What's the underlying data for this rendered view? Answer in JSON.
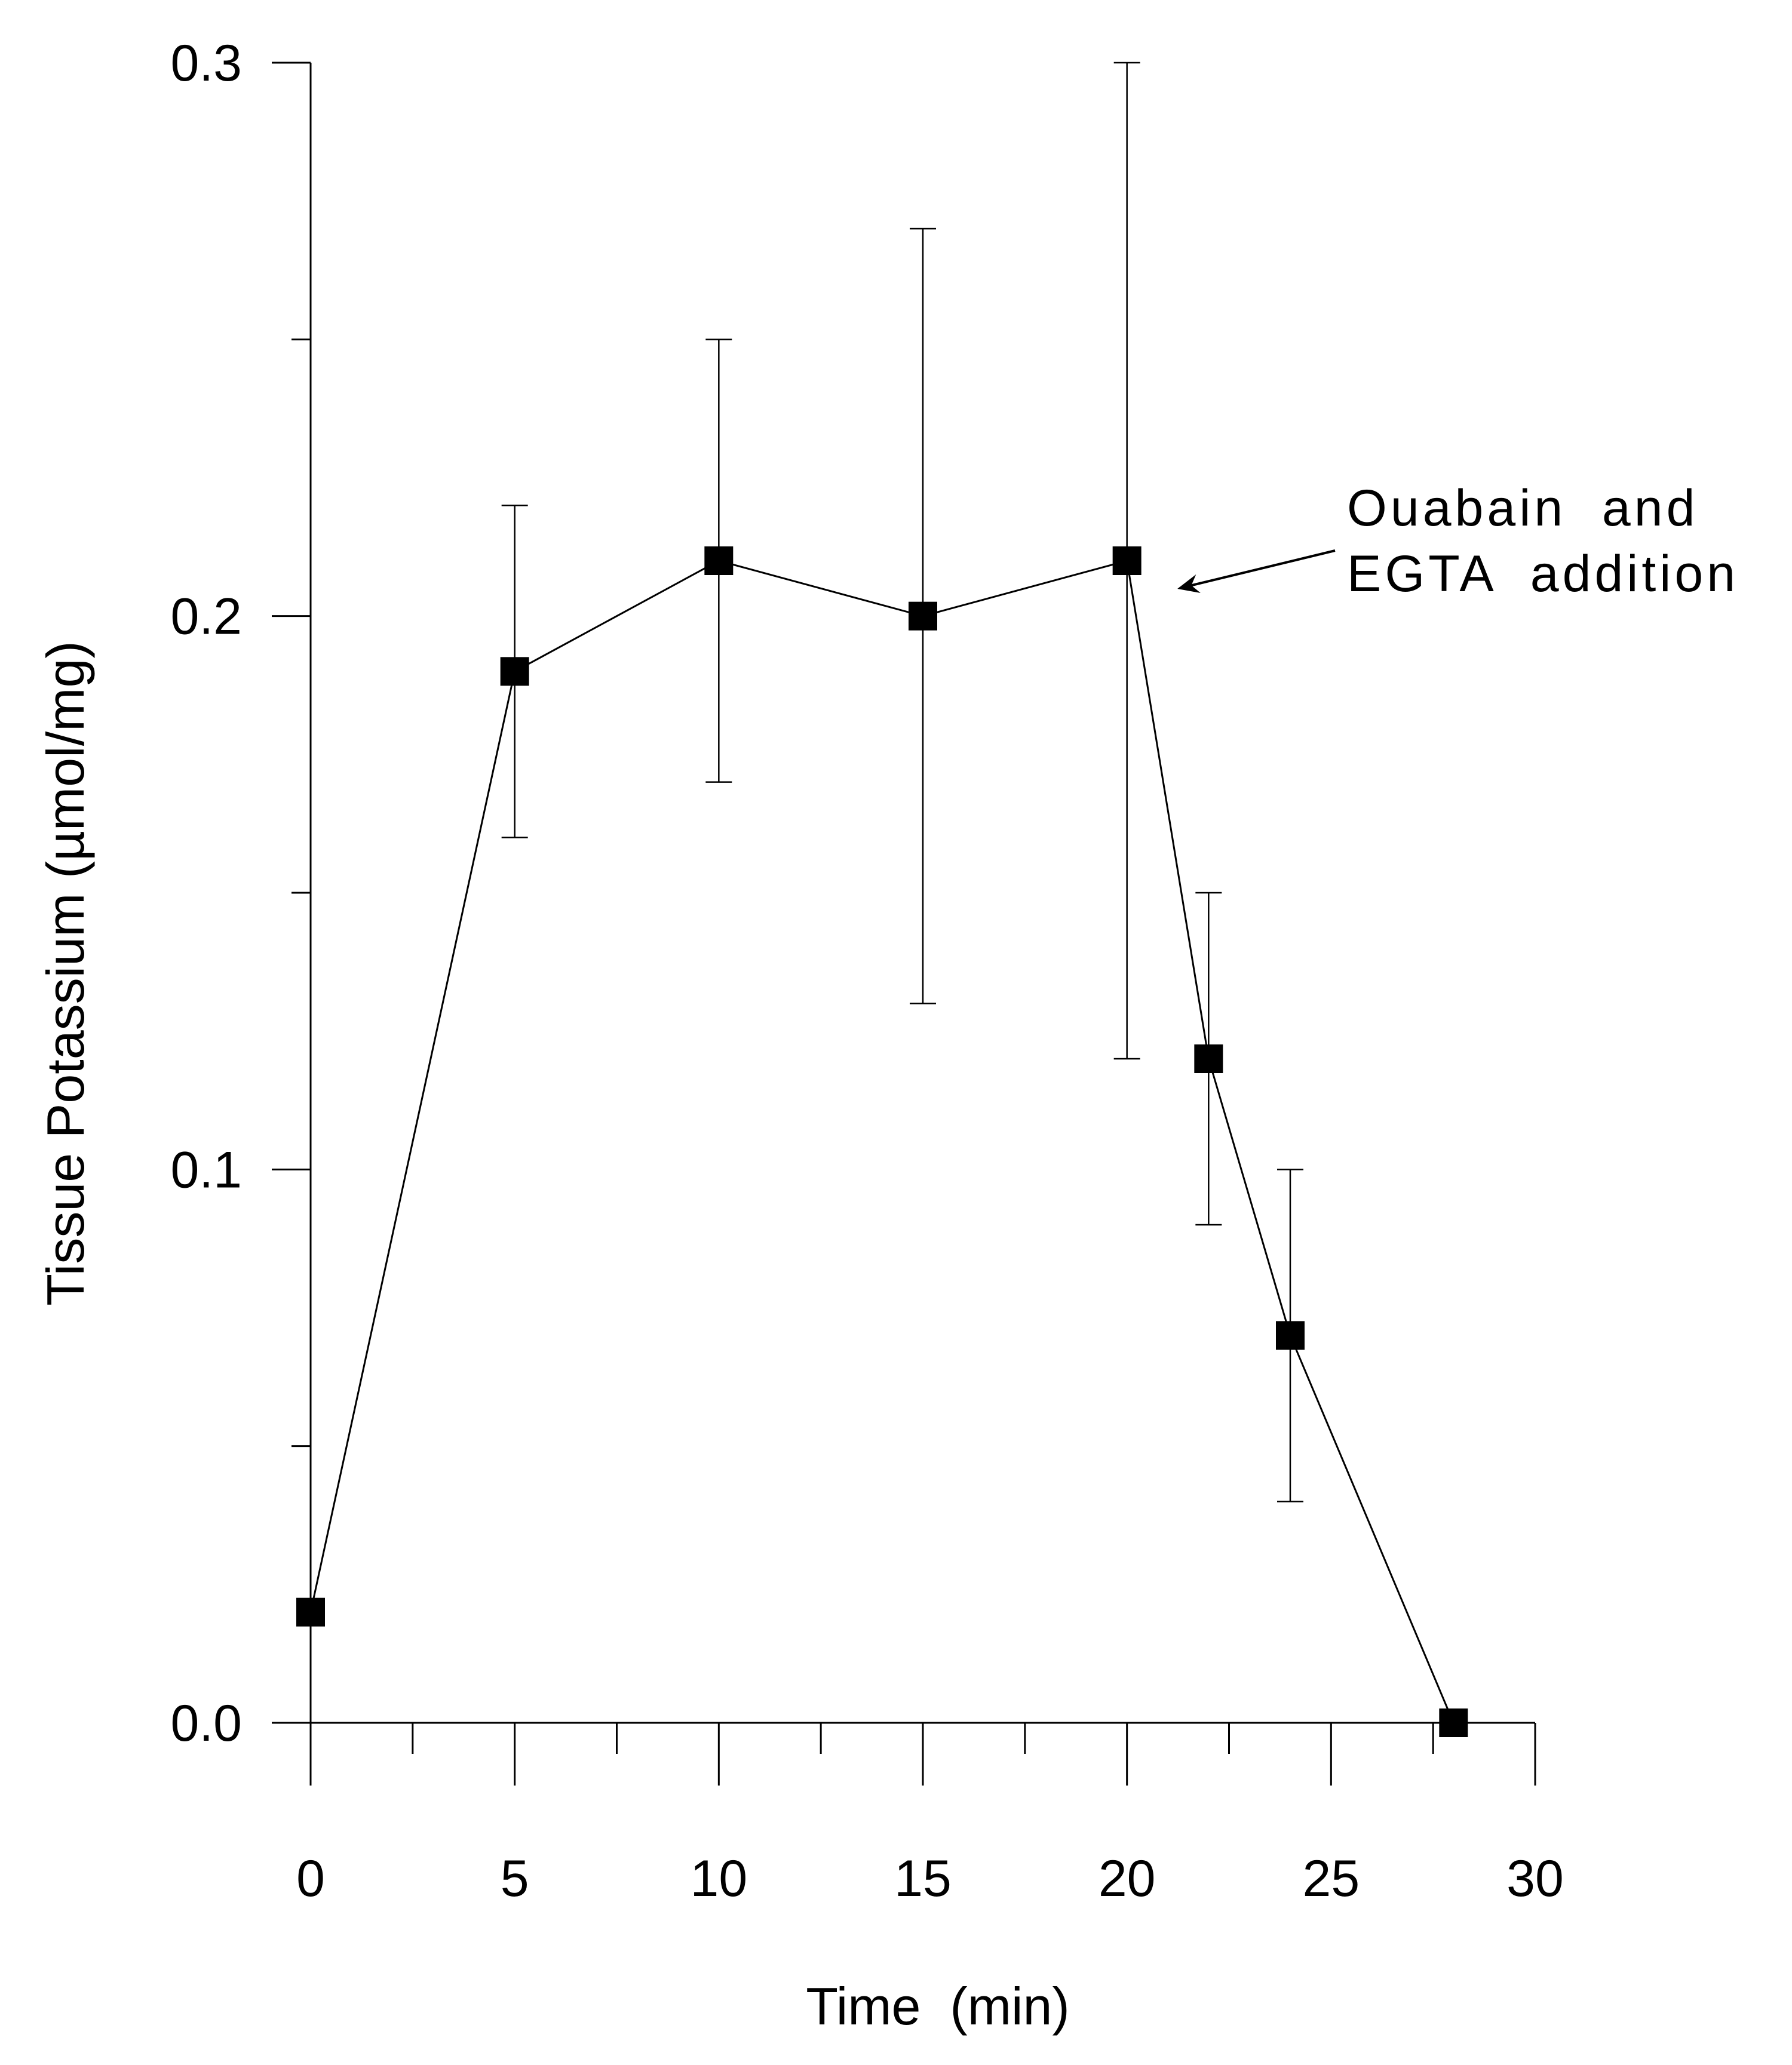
{
  "chart_data": {
    "type": "line",
    "title": "",
    "xlabel": "Time  (min)",
    "ylabel": "Tissue Potassium (µmol/mg)",
    "xlim": [
      0,
      30
    ],
    "ylim": [
      0,
      0.3
    ],
    "x_ticks": [
      "0",
      "5",
      "10",
      "15",
      "20",
      "25",
      "30"
    ],
    "y_ticks": [
      "0.0",
      "0.1",
      "0.2",
      "0.3"
    ],
    "grid": false,
    "series": [
      {
        "name": "Tissue Potassium",
        "marker": "square",
        "x": [
          0,
          5,
          10,
          15,
          20,
          22,
          24,
          28
        ],
        "y": [
          0.02,
          0.19,
          0.21,
          0.2,
          0.21,
          0.12,
          0.07,
          0.0
        ],
        "error_low": [
          null,
          0.16,
          0.17,
          0.13,
          0.12,
          0.09,
          0.04,
          null
        ],
        "error_high": [
          null,
          0.22,
          0.25,
          0.27,
          0.3,
          0.15,
          0.1,
          null
        ]
      }
    ],
    "annotation": {
      "lines": [
        "Ouabain  and",
        "EGTA  addition"
      ],
      "points_to": {
        "x": 20,
        "y": 0.21
      }
    },
    "colors": {
      "line": "#000000",
      "marker": "#000000"
    }
  }
}
